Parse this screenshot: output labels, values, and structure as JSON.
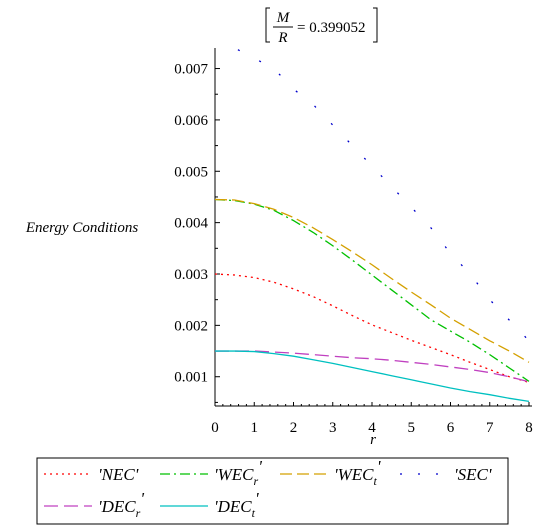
{
  "chart_data": {
    "type": "line",
    "title_parts": {
      "num": "M",
      "den": "R",
      "eq": "= 0.399052"
    },
    "xlabel": "r",
    "ylabel": "Energy Conditions",
    "xlim": [
      0,
      8
    ],
    "ylim": [
      0.00043,
      0.0074
    ],
    "xticks": [
      "0",
      "1",
      "2",
      "3",
      "4",
      "5",
      "6",
      "7",
      "8"
    ],
    "xtick_values": [
      0,
      1,
      2,
      3,
      4,
      5,
      6,
      7,
      8
    ],
    "yticks": [
      "0.001",
      "0.002",
      "0.003",
      "0.004",
      "0.005",
      "0.006",
      "0.007"
    ],
    "ytick_values": [
      0.001,
      0.002,
      0.003,
      0.004,
      0.005,
      0.006,
      0.007
    ],
    "grid": false,
    "legend_position": "bottom",
    "x": [
      0,
      0.5,
      1,
      1.5,
      2,
      2.5,
      3,
      3.5,
      4,
      4.5,
      5,
      5.5,
      6,
      6.5,
      7,
      7.5,
      8
    ],
    "series": [
      {
        "key": "NEC",
        "name": "'NEC'",
        "sub": "",
        "color": "#ff0000",
        "dash": "2,4",
        "values": [
          0.003,
          0.00298,
          0.00293,
          0.00284,
          0.00271,
          0.00256,
          0.00238,
          0.00219,
          0.00201,
          0.00186,
          0.00171,
          0.00157,
          0.00143,
          0.00128,
          0.00114,
          0.001,
          0.00089
        ]
      },
      {
        "key": "WECr",
        "name": "'WEC",
        "sub": "r",
        "color": "#00c000",
        "dash": "10,4,2,4",
        "values": [
          0.00445,
          0.00443,
          0.00436,
          0.00424,
          0.00404,
          0.00381,
          0.00355,
          0.00327,
          0.00298,
          0.00269,
          0.0024,
          0.00211,
          0.00189,
          0.00167,
          0.00143,
          0.00117,
          0.00091
        ]
      },
      {
        "key": "WECt",
        "name": "'WEC",
        "sub": "t",
        "color": "#d4a000",
        "dash": "12,5",
        "values": [
          0.00445,
          0.00444,
          0.00437,
          0.00426,
          0.0041,
          0.0039,
          0.00367,
          0.00343,
          0.00318,
          0.00291,
          0.00265,
          0.0024,
          0.00214,
          0.00192,
          0.0017,
          0.0015,
          0.00128
        ]
      },
      {
        "key": "SEC",
        "name": "'SEC'",
        "sub": "",
        "color": "#0000cc",
        "dash": "2,22",
        "values": [
          0.0075,
          0.0074,
          0.0072,
          0.007,
          0.0066,
          0.0063,
          0.0059,
          0.0055,
          0.0051,
          0.0047,
          0.0043,
          0.0039,
          0.0034,
          0.003,
          0.0025,
          0.0021,
          0.0017
        ]
      },
      {
        "key": "DECr",
        "name": "'DEC",
        "sub": "r",
        "color": "#c040c0",
        "dash": "14,6",
        "values": [
          0.0015,
          0.0015,
          0.0015,
          0.00148,
          0.00146,
          0.00143,
          0.0014,
          0.00137,
          0.00135,
          0.00132,
          0.00128,
          0.00124,
          0.00119,
          0.00114,
          0.00108,
          0.001,
          0.0009
        ]
      },
      {
        "key": "DECt",
        "name": "'DEC",
        "sub": "t",
        "color": "#00c0c0",
        "dash": "",
        "values": [
          0.0015,
          0.0015,
          0.00149,
          0.00145,
          0.0014,
          0.00133,
          0.00126,
          0.00118,
          0.0011,
          0.00102,
          0.00094,
          0.00086,
          0.00078,
          0.00071,
          0.00065,
          0.00058,
          0.00052
        ]
      }
    ]
  }
}
